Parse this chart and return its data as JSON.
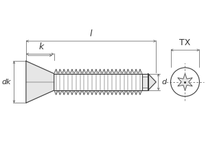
{
  "bg_color": "#ffffff",
  "line_color": "#3a3a3a",
  "dim_color": "#555555",
  "label_color": "#333333",
  "figsize": [
    3.0,
    2.25
  ],
  "dpi": 100,
  "labels": {
    "l": "l",
    "k": "k",
    "d": "d",
    "dk": "dk",
    "TX": "TX"
  },
  "xlim": [
    0,
    10
  ],
  "ylim": [
    0,
    7.5
  ]
}
